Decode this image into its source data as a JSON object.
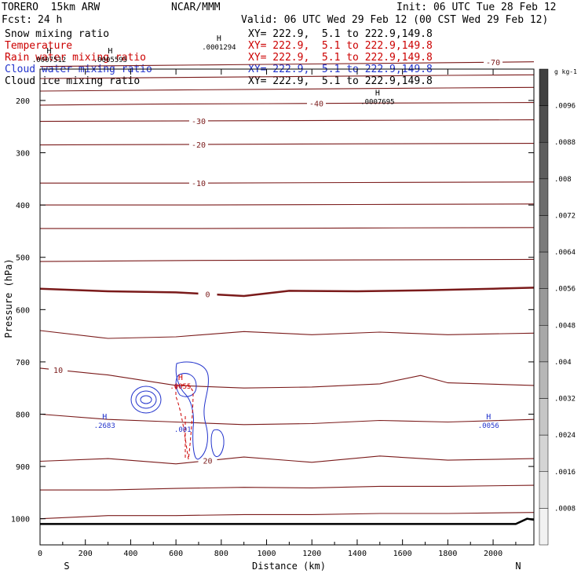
{
  "header": {
    "model": "TORERO  15km ARW",
    "center": "NCAR/MMM",
    "init": "Init: 06 UTC Tue 28 Feb 12",
    "fcst_label": "Fcst:",
    "fcst_value": "24 h",
    "valid": "Valid: 06 UTC Wed 29 Feb 12 (00 CST Wed 29 Feb 12)"
  },
  "fields": [
    {
      "name": "Snow mixing ratio",
      "color": "#000000",
      "xy": "XY= 222.9,  5.1 to 222.9,149.8"
    },
    {
      "name": "Temperature",
      "color": "#cc0000",
      "xy": "XY= 222.9,  5.1 to 222.9,149.8"
    },
    {
      "name": "Rain water mixing ratio",
      "color": "#cc0000",
      "xy": "XY= 222.9,  5.1 to 222.9,149.8"
    },
    {
      "name": "Cloud water mixing ratio",
      "color": "#2233cc",
      "xy": "XY= 222.9,  5.1 to 222.9,149.8"
    },
    {
      "name": "Cloud ice mixing ratio",
      "color": "#000000",
      "xy": "XY= 222.9,  5.1 to 222.9,149.8"
    }
  ],
  "chart_data": {
    "type": "line",
    "title": "",
    "xlabel": "Distance (km)",
    "ylabel": "Pressure (hPa)",
    "xlim": [
      0,
      2180
    ],
    "ylim": [
      1050,
      140
    ],
    "x_ticks": [
      0,
      200,
      400,
      600,
      800,
      1000,
      1200,
      1400,
      1600,
      1800,
      2000
    ],
    "y_ticks": [
      200,
      300,
      400,
      500,
      600,
      700,
      800,
      900,
      1000
    ],
    "x_end_labels": {
      "left": "S",
      "right": "N"
    },
    "temperature_isotherms": [
      {
        "label": "-70",
        "label_x": 2000,
        "points": [
          [
            0,
            135
          ],
          [
            500,
            133
          ],
          [
            1000,
            131
          ],
          [
            1500,
            129
          ],
          [
            2180,
            126
          ]
        ]
      },
      {
        "label": "",
        "points": [
          [
            0,
            158
          ],
          [
            600,
            156
          ],
          [
            1200,
            154
          ],
          [
            1800,
            152
          ],
          [
            2180,
            151
          ]
        ]
      },
      {
        "label": "",
        "points": [
          [
            0,
            182
          ],
          [
            600,
            180
          ],
          [
            1200,
            178
          ],
          [
            1800,
            176
          ],
          [
            2180,
            175
          ]
        ]
      },
      {
        "label": "-40",
        "label_x": 1220,
        "points": [
          [
            0,
            209
          ],
          [
            500,
            207
          ],
          [
            1000,
            206
          ],
          [
            1500,
            205
          ],
          [
            2180,
            204
          ]
        ]
      },
      {
        "label": "-30",
        "label_x": 700,
        "points": [
          [
            0,
            240
          ],
          [
            700,
            239
          ],
          [
            1400,
            238
          ],
          [
            2180,
            237
          ]
        ]
      },
      {
        "label": "-20",
        "label_x": 700,
        "points": [
          [
            0,
            285
          ],
          [
            700,
            284
          ],
          [
            1400,
            283
          ],
          [
            2180,
            282
          ]
        ]
      },
      {
        "label": "-10",
        "label_x": 700,
        "points": [
          [
            0,
            358
          ],
          [
            700,
            358
          ],
          [
            1400,
            357
          ],
          [
            2180,
            356
          ]
        ]
      },
      {
        "label": "",
        "points": [
          [
            0,
            400
          ],
          [
            700,
            400
          ],
          [
            1400,
            399
          ],
          [
            2180,
            398
          ]
        ]
      },
      {
        "label": "",
        "points": [
          [
            0,
            445
          ],
          [
            700,
            445
          ],
          [
            1400,
            444
          ],
          [
            2180,
            443
          ]
        ]
      },
      {
        "label": "",
        "points": [
          [
            0,
            508
          ],
          [
            700,
            506
          ],
          [
            1400,
            505
          ],
          [
            2180,
            504
          ]
        ]
      },
      {
        "label": "0",
        "label_x": 740,
        "points": [
          [
            0,
            560
          ],
          [
            300,
            565
          ],
          [
            600,
            567
          ],
          [
            900,
            574
          ],
          [
            1100,
            564
          ],
          [
            1400,
            565
          ],
          [
            1700,
            563
          ],
          [
            2000,
            560
          ],
          [
            2180,
            558
          ]
        ]
      },
      {
        "label": "",
        "points": [
          [
            0,
            640
          ],
          [
            300,
            655
          ],
          [
            600,
            652
          ],
          [
            900,
            642
          ],
          [
            1200,
            648
          ],
          [
            1500,
            643
          ],
          [
            1800,
            648
          ],
          [
            2180,
            645
          ]
        ]
      },
      {
        "label": "10",
        "label_x": 80,
        "points": [
          [
            0,
            712
          ],
          [
            300,
            725
          ],
          [
            600,
            745
          ],
          [
            900,
            750
          ],
          [
            1200,
            748
          ],
          [
            1500,
            742
          ],
          [
            1680,
            726
          ],
          [
            1800,
            740
          ],
          [
            2180,
            745
          ]
        ]
      },
      {
        "label": "",
        "points": [
          [
            0,
            800
          ],
          [
            300,
            810
          ],
          [
            600,
            815
          ],
          [
            900,
            820
          ],
          [
            1200,
            818
          ],
          [
            1500,
            812
          ],
          [
            1800,
            815
          ],
          [
            2180,
            810
          ]
        ]
      },
      {
        "label": "20",
        "label_x": 740,
        "points": [
          [
            0,
            890
          ],
          [
            300,
            885
          ],
          [
            600,
            895
          ],
          [
            900,
            882
          ],
          [
            1200,
            892
          ],
          [
            1500,
            880
          ],
          [
            1800,
            888
          ],
          [
            2180,
            885
          ]
        ]
      },
      {
        "label": "",
        "points": [
          [
            0,
            945
          ],
          [
            300,
            945
          ],
          [
            600,
            942
          ],
          [
            900,
            940
          ],
          [
            1200,
            941
          ],
          [
            1500,
            938
          ],
          [
            1800,
            938
          ],
          [
            2180,
            936
          ]
        ]
      },
      {
        "label": "",
        "points": [
          [
            0,
            1000
          ],
          [
            300,
            994
          ],
          [
            600,
            994
          ],
          [
            900,
            992
          ],
          [
            1200,
            992
          ],
          [
            1500,
            990
          ],
          [
            1800,
            990
          ],
          [
            2180,
            988
          ]
        ]
      }
    ],
    "ground_pressure": [
      [
        0,
        1010
      ],
      [
        2100,
        1010
      ],
      [
        2150,
        1000
      ],
      [
        2180,
        1002
      ]
    ],
    "labels": [
      {
        "text": "H",
        "sub": ".0007512",
        "x": 40,
        "y": 110,
        "color": "#000000"
      },
      {
        "text": "H",
        "sub": ".0005595",
        "x": 310,
        "y": 110,
        "color": "#000000"
      },
      {
        "text": "H",
        "sub": ".0001294",
        "x": 790,
        "y": 86,
        "color": "#000000"
      },
      {
        "text": "H",
        "sub": ".0007695",
        "x": 1490,
        "y": 190,
        "color": "#000000"
      },
      {
        "text": "H",
        "sub": ".2683",
        "x": 285,
        "y": 810,
        "color": "#2233cc"
      },
      {
        "text": "H",
        "sub": ".0056",
        "x": 1980,
        "y": 810,
        "color": "#2233cc"
      },
      {
        "text": "H",
        "sub": ".0055",
        "x": 620,
        "y": 735,
        "color": "#cc0000"
      },
      {
        "text": "",
        "sub": ".001",
        "x": 630,
        "y": 817,
        "color": "#2233cc"
      }
    ],
    "colorbar": {
      "unit": "g kg-1",
      "ticks": [
        ".0096",
        ".0088",
        ".008",
        ".0072",
        ".0064",
        ".0056",
        ".0048",
        ".004",
        ".0032",
        ".0024",
        ".0016",
        ".0008"
      ]
    }
  }
}
